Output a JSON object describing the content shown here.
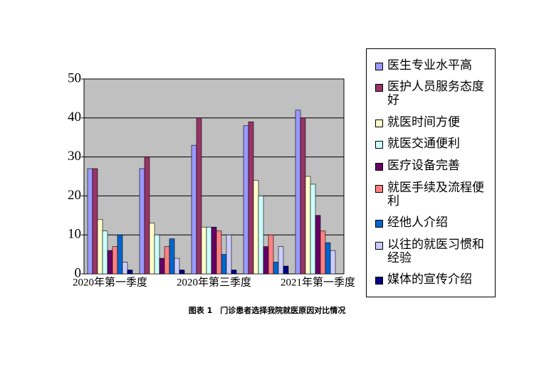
{
  "chart_data": {
    "type": "bar",
    "categories": [
      "2020年第一季度",
      null,
      "2020年第三季度",
      null,
      "2021年第一季度"
    ],
    "series": [
      {
        "name": "医生专业水平高",
        "color": "#9999ff",
        "values": [
          27,
          27,
          33,
          38,
          42
        ]
      },
      {
        "name": "医护人员服务态度好",
        "color": "#993366",
        "values": [
          27,
          30,
          40,
          39,
          40
        ]
      },
      {
        "name": "就医时间方便",
        "color": "#ffffcc",
        "values": [
          14,
          13,
          12,
          24,
          25
        ]
      },
      {
        "name": "就医交通便利",
        "color": "#ccffff",
        "values": [
          11,
          10,
          12,
          20,
          23
        ]
      },
      {
        "name": "医疗设备完善",
        "color": "#660066",
        "values": [
          6,
          4,
          12,
          7,
          15
        ]
      },
      {
        "name": "就医手续及流程便利",
        "color": "#ff8080",
        "values": [
          7,
          7,
          11,
          10,
          11
        ]
      },
      {
        "name": "经他人介绍",
        "color": "#0066cc",
        "values": [
          10,
          9,
          5,
          3,
          8
        ]
      },
      {
        "name": "以往的就医习惯和经验",
        "color": "#ccccff",
        "values": [
          3,
          4,
          10,
          7,
          6
        ]
      },
      {
        "name": "媒体的宣传介绍",
        "color": "#000080",
        "values": [
          1,
          1,
          1,
          2,
          0
        ]
      }
    ],
    "ylim": [
      0,
      50
    ],
    "yticks": [
      0,
      10,
      20,
      30,
      40,
      50
    ],
    "grid": true,
    "plot_background": "#c0c0c0",
    "legend": "right",
    "caption": "图表 1　门诊患者选择我院就医原因对比情况"
  }
}
